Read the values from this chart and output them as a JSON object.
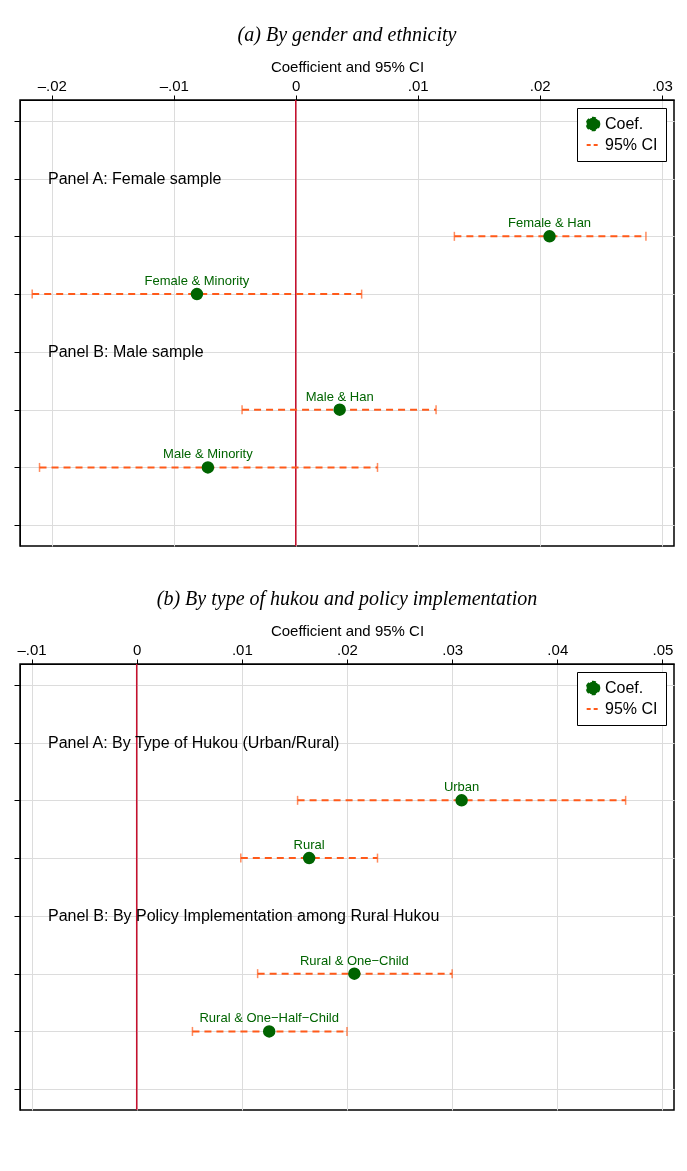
{
  "chart_data": [
    {
      "type": "scatter",
      "orientation": "horizontal",
      "title": "(a) By gender and ethnicity",
      "xlabel": "Coefficient and 95% CI",
      "categories": [
        null,
        null,
        null,
        null,
        null,
        null,
        null,
        null
      ],
      "xlim": [
        -0.0226,
        0.031
      ],
      "xticks": [
        {
          "value": -0.02,
          "label": "–.02"
        },
        {
          "value": -0.01,
          "label": "–.01"
        },
        {
          "value": 0,
          "label": "0"
        },
        {
          "value": 0.01,
          "label": ".01"
        },
        {
          "value": 0.02,
          "label": ".02"
        },
        {
          "value": 0.03,
          "label": ".03"
        }
      ],
      "grid": true,
      "legend": "top right",
      "tick_labels": "x",
      "marker": "circle",
      "ref_lines": [
        {
          "axis": "x",
          "value": 0,
          "color": "#c8102e"
        }
      ],
      "annotations": [
        "Panel A: Female sample",
        "Panel B: Male sample"
      ],
      "series": [
        {
          "name": "Coef.",
          "color": "#006400",
          "values": [
            null,
            null,
            0.0208,
            -0.0081,
            null,
            0.0036,
            -0.0072,
            null
          ],
          "value_labels": [
            null,
            null,
            "Female & Han",
            "Female & Minority",
            null,
            "Male & Han",
            "Male & Minority",
            null
          ],
          "errors": [
            null,
            null,
            [
              0.013,
              0.0287
            ],
            [
              -0.0216,
              0.0054
            ],
            null,
            [
              -0.0044,
              0.0115
            ],
            [
              -0.021,
              0.0067
            ],
            null
          ]
        },
        {
          "name": "95% CI",
          "color": "#ff5a1a",
          "marker": "none",
          "line_style": "dashed",
          "values": [
            null,
            null,
            null,
            null,
            null,
            null,
            null,
            null
          ]
        }
      ]
    },
    {
      "type": "scatter",
      "orientation": "horizontal",
      "title": "(b) By type of hukou and policy implementation",
      "xlabel": "Coefficient and 95% CI",
      "categories": [
        null,
        null,
        null,
        null,
        null,
        null,
        null,
        null
      ],
      "xlim": [
        -0.0111,
        0.0511
      ],
      "xticks": [
        {
          "value": -0.01,
          "label": "–.01"
        },
        {
          "value": 0,
          "label": "0"
        },
        {
          "value": 0.01,
          "label": ".01"
        },
        {
          "value": 0.02,
          "label": ".02"
        },
        {
          "value": 0.03,
          "label": ".03"
        },
        {
          "value": 0.04,
          "label": ".04"
        },
        {
          "value": 0.05,
          "label": ".05"
        }
      ],
      "grid": true,
      "legend": "top right",
      "tick_labels": "x",
      "marker": "circle",
      "ref_lines": [
        {
          "axis": "x",
          "value": 0,
          "color": "#c8102e"
        }
      ],
      "annotations": [
        "Panel A: By Type of Hukou (Urban/Rural)",
        "Panel B: By Policy Implementation among Rural Hukou"
      ],
      "series": [
        {
          "name": "Coef.",
          "color": "#006400",
          "values": [
            null,
            null,
            0.0309,
            0.0164,
            null,
            0.0207,
            0.0126,
            null
          ],
          "value_labels": [
            null,
            null,
            "Urban",
            "Rural",
            null,
            "Rural & One−Child",
            "Rural & One−Half−Child",
            null
          ],
          "errors": [
            null,
            null,
            [
              0.0153,
              0.0465
            ],
            [
              0.0099,
              0.0229
            ],
            null,
            [
              0.0115,
              0.03
            ],
            [
              0.0053,
              0.02
            ],
            null
          ]
        },
        {
          "name": "95% CI",
          "color": "#ff5a1a",
          "marker": "none",
          "line_style": "dashed",
          "values": [
            null,
            null,
            null,
            null,
            null,
            null,
            null,
            null
          ]
        }
      ]
    }
  ]
}
